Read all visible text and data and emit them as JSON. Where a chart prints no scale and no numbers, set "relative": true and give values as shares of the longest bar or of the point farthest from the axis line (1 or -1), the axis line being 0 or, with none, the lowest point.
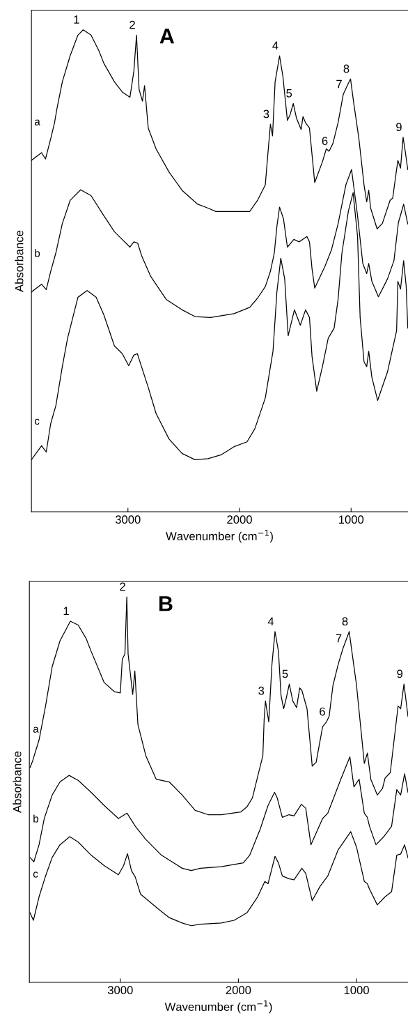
{
  "chart_data": [
    {
      "type": "line",
      "title": "A",
      "xlabel": "Wavenumber (cm$^{−1}$)",
      "ylabel": "Absorbance",
      "relative": true,
      "xlim": [
        3865,
        490
      ],
      "xticks": [
        3000,
        2000,
        1000
      ],
      "grid": false,
      "legend": false,
      "marker": "none",
      "line_style": "solid",
      "series": [
        {
          "name": "a",
          "color": "#000000",
          "x": [
            3865,
            3774,
            3739,
            3692,
            3658,
            3634,
            3588,
            3518,
            3448,
            3401,
            3331,
            3261,
            3215,
            3121,
            3051,
            2982,
            2947,
            2923,
            2900,
            2870,
            2851,
            2818,
            2748,
            2632,
            2515,
            2375,
            2282,
            2212,
            1909,
            1839,
            1769,
            1746,
            1723,
            1704,
            1681,
            1641,
            1611,
            1571,
            1548,
            1518,
            1490,
            1448,
            1431,
            1408,
            1373,
            1326,
            1257,
            1222,
            1198,
            1163,
            1117,
            1070,
            1035,
            1005,
            977,
            930,
            884,
            860,
            842,
            825,
            767,
            720,
            651,
            627,
            581,
            557,
            534,
            511,
            492
          ],
          "values": [
            0.729,
            0.745,
            0.732,
            0.774,
            0.807,
            0.839,
            0.892,
            0.946,
            0.989,
            1.0,
            0.989,
            0.957,
            0.93,
            0.892,
            0.871,
            0.86,
            0.914,
            0.989,
            0.876,
            0.852,
            0.884,
            0.796,
            0.753,
            0.705,
            0.667,
            0.638,
            0.63,
            0.623,
            0.623,
            0.646,
            0.678,
            0.742,
            0.804,
            0.78,
            0.892,
            0.946,
            0.903,
            0.812,
            0.823,
            0.847,
            0.817,
            0.793,
            0.82,
            0.807,
            0.796,
            0.683,
            0.726,
            0.753,
            0.748,
            0.764,
            0.807,
            0.866,
            0.884,
            0.898,
            0.849,
            0.774,
            0.678,
            0.643,
            0.667,
            0.63,
            0.587,
            0.598,
            0.646,
            0.651,
            0.729,
            0.713,
            0.777,
            0.742,
            0.71
          ]
        },
        {
          "name": "b",
          "color": "#000000",
          "x": [
            3865,
            3774,
            3732,
            3692,
            3646,
            3588,
            3518,
            3424,
            3331,
            3215,
            3121,
            2982,
            2947,
            2912,
            2877,
            2795,
            2655,
            2515,
            2399,
            2259,
            2049,
            1909,
            1839,
            1769,
            1723,
            1688,
            1665,
            1641,
            1606,
            1571,
            1513,
            1466,
            1396,
            1373,
            1350,
            1326,
            1233,
            1175,
            1117,
            1047,
            996,
            942,
            895,
            860,
            842,
            814,
            755,
            674,
            616,
            576,
            529,
            492
          ],
          "values": [
            0.456,
            0.472,
            0.461,
            0.499,
            0.537,
            0.598,
            0.646,
            0.668,
            0.656,
            0.614,
            0.581,
            0.549,
            0.56,
            0.557,
            0.531,
            0.488,
            0.44,
            0.419,
            0.405,
            0.403,
            0.411,
            0.424,
            0.443,
            0.467,
            0.499,
            0.537,
            0.592,
            0.632,
            0.608,
            0.549,
            0.565,
            0.56,
            0.571,
            0.56,
            0.504,
            0.464,
            0.51,
            0.544,
            0.597,
            0.678,
            0.71,
            0.614,
            0.515,
            0.494,
            0.515,
            0.478,
            0.446,
            0.483,
            0.521,
            0.6,
            0.638,
            0.597
          ]
        },
        {
          "name": "c",
          "color": "#000000",
          "x": [
            3865,
            3774,
            3732,
            3692,
            3646,
            3588,
            3541,
            3448,
            3366,
            3285,
            3215,
            3121,
            3051,
            2993,
            2947,
            2916,
            2818,
            2748,
            2632,
            2515,
            2399,
            2282,
            2166,
            2049,
            1933,
            1863,
            1769,
            1700,
            1665,
            1630,
            1595,
            1564,
            1508,
            1455,
            1408,
            1373,
            1350,
            1308,
            1257,
            1205,
            1152,
            1117,
            1082,
            1024,
            982,
            942,
            919,
            884,
            860,
            842,
            814,
            762,
            674,
            592,
            581,
            557,
            529,
            506,
            492
          ],
          "values": [
            0.108,
            0.137,
            0.124,
            0.183,
            0.22,
            0.301,
            0.36,
            0.445,
            0.459,
            0.445,
            0.408,
            0.344,
            0.328,
            0.303,
            0.325,
            0.328,
            0.258,
            0.204,
            0.151,
            0.121,
            0.108,
            0.11,
            0.118,
            0.135,
            0.145,
            0.172,
            0.236,
            0.333,
            0.456,
            0.526,
            0.483,
            0.365,
            0.419,
            0.387,
            0.419,
            0.403,
            0.322,
            0.25,
            0.301,
            0.36,
            0.381,
            0.44,
            0.537,
            0.624,
            0.662,
            0.571,
            0.403,
            0.311,
            0.301,
            0.333,
            0.279,
            0.231,
            0.29,
            0.376,
            0.478,
            0.462,
            0.521,
            0.467,
            0.381
          ]
        }
      ],
      "annotations": [
        {
          "text": "1",
          "x": 3424,
          "y": 1.0
        },
        {
          "text": "2",
          "x": 2923,
          "y": 0.989
        },
        {
          "text": "3",
          "x": 1723,
          "y": 0.804
        },
        {
          "text": "4",
          "x": 1641,
          "y": 0.946
        },
        {
          "text": "5",
          "x": 1518,
          "y": 0.847
        },
        {
          "text": "6",
          "x": 1198,
          "y": 0.748
        },
        {
          "text": "7",
          "x": 1070,
          "y": 0.866
        },
        {
          "text": "8",
          "x": 1005,
          "y": 0.898
        },
        {
          "text": "9",
          "x": 534,
          "y": 0.777
        }
      ]
    },
    {
      "type": "line",
      "title": "B",
      "xlabel": "Wavenumber (cm$^{−1}$)",
      "ylabel": "Absorbance",
      "relative": true,
      "xlim": [
        3770,
        564
      ],
      "xticks": [
        3000,
        2000,
        1000
      ],
      "grid": false,
      "legend": false,
      "marker": "none",
      "line_style": "solid",
      "series": [
        {
          "name": "a",
          "color": "#000000",
          "x": [
            3765,
            3743,
            3688,
            3633,
            3577,
            3511,
            3423,
            3357,
            3291,
            3247,
            3137,
            3049,
            3000,
            2983,
            2961,
            2945,
            2934,
            2895,
            2877,
            2851,
            2784,
            2696,
            2586,
            2476,
            2366,
            2256,
            2146,
            1981,
            1926,
            1881,
            1837,
            1793,
            1782,
            1771,
            1743,
            1716,
            1690,
            1661,
            1639,
            1617,
            1595,
            1569,
            1540,
            1507,
            1481,
            1463,
            1419,
            1375,
            1342,
            1287,
            1254,
            1232,
            1199,
            1155,
            1115,
            1062,
            1000,
            934,
            908,
            879,
            824,
            780,
            758,
            714,
            648,
            626,
            598,
            564
          ],
          "values": [
            0.557,
            0.574,
            0.629,
            0.717,
            0.819,
            0.886,
            0.937,
            0.927,
            0.893,
            0.859,
            0.778,
            0.754,
            0.751,
            0.839,
            0.852,
            1.0,
            0.852,
            0.747,
            0.808,
            0.669,
            0.588,
            0.527,
            0.52,
            0.486,
            0.446,
            0.435,
            0.435,
            0.442,
            0.456,
            0.479,
            0.534,
            0.588,
            0.683,
            0.73,
            0.676,
            0.825,
            0.91,
            0.859,
            0.744,
            0.71,
            0.737,
            0.774,
            0.73,
            0.713,
            0.764,
            0.758,
            0.71,
            0.561,
            0.571,
            0.663,
            0.676,
            0.69,
            0.771,
            0.825,
            0.866,
            0.91,
            0.771,
            0.568,
            0.595,
            0.527,
            0.486,
            0.503,
            0.53,
            0.544,
            0.717,
            0.71,
            0.774,
            0.69
          ]
        },
        {
          "name": "b",
          "color": "#000000",
          "x": [
            3765,
            3732,
            3688,
            3644,
            3577,
            3511,
            3434,
            3357,
            3247,
            3137,
            3016,
            2943,
            2873,
            2785,
            2652,
            2476,
            2399,
            2322,
            2146,
            1959,
            1904,
            1815,
            1749,
            1694,
            1672,
            1628,
            1573,
            1529,
            1467,
            1430,
            1386,
            1287,
            1243,
            1133,
            1056,
            1022,
            978,
            934,
            908,
            890,
            835,
            769,
            703,
            659,
            626,
            593,
            564
          ],
          "values": [
            0.324,
            0.313,
            0.357,
            0.425,
            0.486,
            0.52,
            0.537,
            0.524,
            0.493,
            0.459,
            0.425,
            0.439,
            0.405,
            0.371,
            0.33,
            0.296,
            0.29,
            0.296,
            0.3,
            0.31,
            0.33,
            0.398,
            0.459,
            0.493,
            0.479,
            0.428,
            0.435,
            0.432,
            0.462,
            0.452,
            0.357,
            0.425,
            0.439,
            0.527,
            0.585,
            0.507,
            0.527,
            0.439,
            0.428,
            0.405,
            0.357,
            0.378,
            0.405,
            0.5,
            0.486,
            0.541,
            0.493
          ]
        },
        {
          "name": "c",
          "color": "#000000",
          "x": [
            3765,
            3736,
            3688,
            3633,
            3577,
            3511,
            3428,
            3357,
            3247,
            3137,
            3016,
            2972,
            2939,
            2906,
            2873,
            2829,
            2696,
            2586,
            2476,
            2399,
            2322,
            2146,
            2036,
            1926,
            1837,
            1776,
            1749,
            1716,
            1690,
            1661,
            1628,
            1573,
            1529,
            1463,
            1430,
            1375,
            1309,
            1243,
            1155,
            1049,
            1000,
            934,
            908,
            890,
            824,
            758,
            703,
            659,
            626,
            593,
            564
          ],
          "values": [
            0.181,
            0.161,
            0.222,
            0.276,
            0.324,
            0.357,
            0.378,
            0.364,
            0.33,
            0.303,
            0.279,
            0.303,
            0.334,
            0.29,
            0.273,
            0.229,
            0.195,
            0.168,
            0.154,
            0.147,
            0.151,
            0.154,
            0.161,
            0.181,
            0.222,
            0.262,
            0.256,
            0.296,
            0.327,
            0.31,
            0.276,
            0.269,
            0.266,
            0.296,
            0.283,
            0.212,
            0.249,
            0.276,
            0.344,
            0.391,
            0.351,
            0.262,
            0.256,
            0.242,
            0.201,
            0.222,
            0.235,
            0.33,
            0.333,
            0.357,
            0.323
          ]
        }
      ],
      "annotations": [
        {
          "text": "1",
          "x": 3423,
          "y": 0.937
        },
        {
          "text": "2",
          "x": 2945,
          "y": 1.0
        },
        {
          "text": "3",
          "x": 1771,
          "y": 0.73
        },
        {
          "text": "4",
          "x": 1690,
          "y": 0.91
        },
        {
          "text": "5",
          "x": 1569,
          "y": 0.774
        },
        {
          "text": "6",
          "x": 1254,
          "y": 0.676
        },
        {
          "text": "7",
          "x": 1115,
          "y": 0.866
        },
        {
          "text": "8",
          "x": 1062,
          "y": 0.91
        },
        {
          "text": "9",
          "x": 598,
          "y": 0.774
        }
      ]
    }
  ]
}
